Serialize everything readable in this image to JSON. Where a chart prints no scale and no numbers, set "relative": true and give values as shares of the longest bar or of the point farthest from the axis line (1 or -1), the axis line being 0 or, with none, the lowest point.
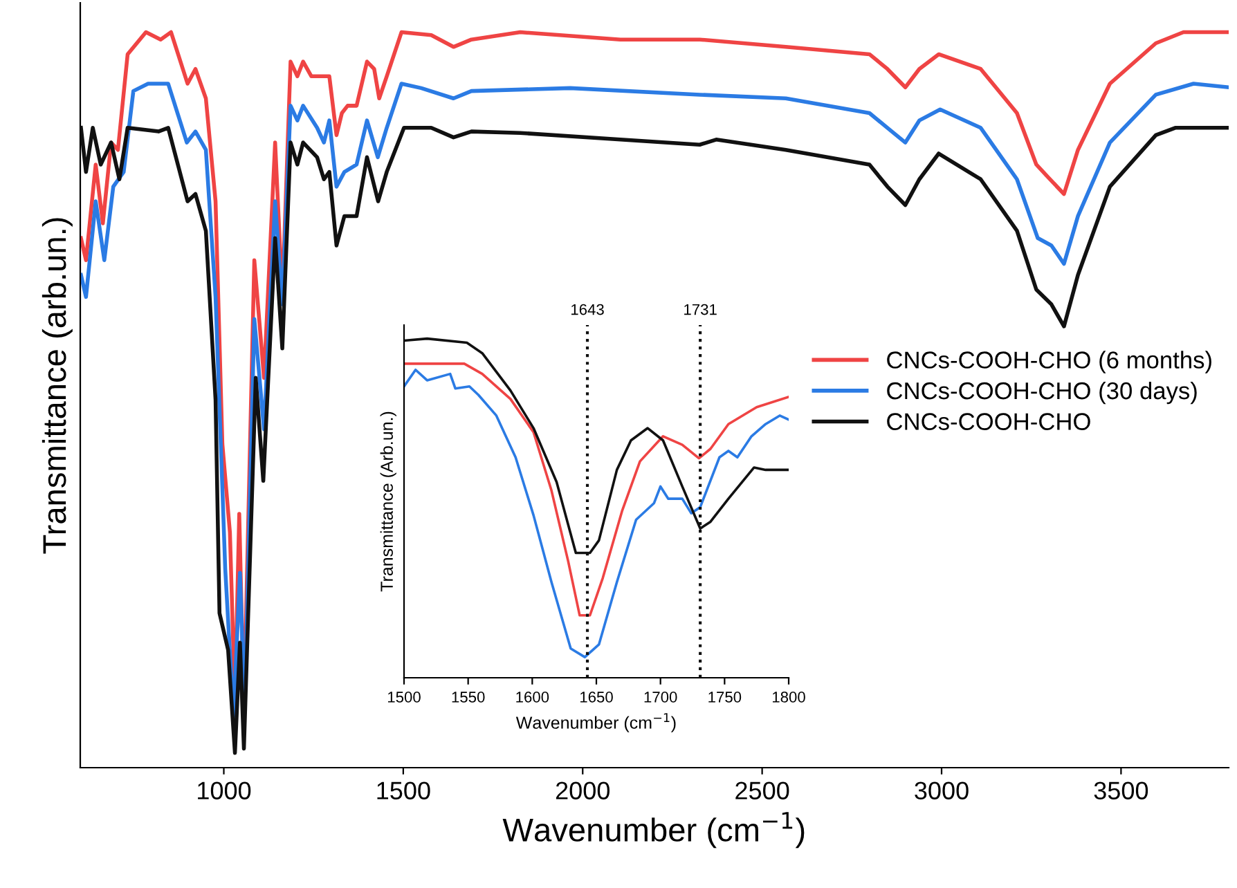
{
  "chart_data": [
    {
      "type": "line",
      "xlabel": "Wavenumber (cm$^{−1}$)",
      "ylabel": "Transmittance (arb.un.)",
      "relative": true,
      "xlim": [
        600,
        3800
      ],
      "xticks": [
        1000,
        1500,
        2000,
        2500,
        3000,
        3500
      ],
      "legend": "right",
      "grid": false,
      "marker": "none",
      "line_style": "solid",
      "series": [
        {
          "name": "CNCs-COOH-CHO (6 months)",
          "color": "#ef4444",
          "x": [
            602,
            616,
            643,
            663,
            686,
            705,
            732,
            783,
            824,
            853,
            899,
            921,
            950,
            977,
            996,
            1017,
            1031,
            1043,
            1056,
            1085,
            1112,
            1143,
            1163,
            1186,
            1205,
            1221,
            1244,
            1294,
            1314,
            1329,
            1345,
            1370,
            1399,
            1419,
            1433,
            1454,
            1495,
            1578,
            1640,
            1690,
            1826,
            2105,
            2326,
            2566,
            2799,
            2849,
            2899,
            2938,
            2992,
            3109,
            3210,
            3264,
            3302,
            3341,
            3380,
            3469,
            3597,
            3674,
            3800
          ],
          "values": [
            0.72,
            0.69,
            0.82,
            0.74,
            0.85,
            0.84,
            0.97,
            1.0,
            0.99,
            1.0,
            0.93,
            0.95,
            0.91,
            0.77,
            0.44,
            0.32,
            0.09,
            0.345,
            0.08,
            0.69,
            0.53,
            0.85,
            0.64,
            0.96,
            0.94,
            0.96,
            0.94,
            0.94,
            0.86,
            0.89,
            0.9,
            0.9,
            0.96,
            0.95,
            0.91,
            0.94,
            1.0,
            0.996,
            0.98,
            0.99,
            1.0,
            0.99,
            0.99,
            0.98,
            0.97,
            0.95,
            0.925,
            0.95,
            0.97,
            0.95,
            0.89,
            0.82,
            0.8,
            0.78,
            0.84,
            0.93,
            0.985,
            1.0,
            1.0
          ]
        },
        {
          "name": "CNCs-COOH-CHO (30 days)",
          "color": "#2b7be4",
          "x": [
            602,
            616,
            643,
            667,
            692,
            721,
            748,
            789,
            845,
            897,
            921,
            950,
            977,
            1004,
            1027,
            1045,
            1058,
            1085,
            1112,
            1143,
            1163,
            1186,
            1205,
            1221,
            1260,
            1279,
            1294,
            1314,
            1336,
            1370,
            1399,
            1429,
            1454,
            1495,
            1550,
            1640,
            1690,
            1965,
            2326,
            2566,
            2799,
            2849,
            2899,
            2938,
            2996,
            3109,
            3210,
            3268,
            3306,
            3341,
            3380,
            3469,
            3597,
            3702,
            3800
          ],
          "values": [
            0.67,
            0.64,
            0.77,
            0.69,
            0.79,
            0.81,
            0.92,
            0.93,
            0.93,
            0.85,
            0.865,
            0.84,
            0.64,
            0.27,
            0.07,
            0.265,
            0.077,
            0.61,
            0.46,
            0.77,
            0.63,
            0.9,
            0.88,
            0.9,
            0.87,
            0.85,
            0.88,
            0.79,
            0.81,
            0.82,
            0.88,
            0.83,
            0.87,
            0.93,
            0.924,
            0.91,
            0.92,
            0.924,
            0.915,
            0.91,
            0.89,
            0.87,
            0.85,
            0.88,
            0.895,
            0.87,
            0.8,
            0.72,
            0.71,
            0.685,
            0.75,
            0.85,
            0.915,
            0.93,
            0.925
          ]
        },
        {
          "name": "CNCs-COOH-CHO",
          "color": "#111111",
          "x": [
            602,
            616,
            635,
            657,
            686,
            709,
            732,
            818,
            845,
            899,
            921,
            950,
            977,
            988,
            1012,
            1031,
            1045,
            1056,
            1089,
            1110,
            1143,
            1163,
            1186,
            1205,
            1221,
            1260,
            1279,
            1294,
            1314,
            1336,
            1370,
            1399,
            1430,
            1454,
            1502,
            1578,
            1640,
            1690,
            1826,
            2105,
            2326,
            2372,
            2566,
            2799,
            2849,
            2899,
            2938,
            2992,
            3109,
            3210,
            3264,
            3306,
            3341,
            3380,
            3469,
            3597,
            3651,
            3800
          ],
          "values": [
            0.87,
            0.81,
            0.87,
            0.82,
            0.85,
            0.8,
            0.87,
            0.865,
            0.87,
            0.77,
            0.78,
            0.73,
            0.5,
            0.21,
            0.16,
            0.02,
            0.17,
            0.026,
            0.53,
            0.39,
            0.72,
            0.57,
            0.85,
            0.82,
            0.85,
            0.83,
            0.8,
            0.81,
            0.71,
            0.75,
            0.75,
            0.83,
            0.77,
            0.81,
            0.87,
            0.87,
            0.857,
            0.865,
            0.863,
            0.854,
            0.847,
            0.854,
            0.84,
            0.82,
            0.79,
            0.765,
            0.8,
            0.835,
            0.8,
            0.73,
            0.65,
            0.63,
            0.6,
            0.67,
            0.79,
            0.86,
            0.87,
            0.87
          ]
        }
      ]
    },
    {
      "type": "line",
      "xlabel": "Wavenumber (cm$^{−1}$)",
      "ylabel": "Transmittance (Arb.un.)",
      "relative": true,
      "xlim": [
        1500,
        1800
      ],
      "xticks": [
        1500,
        1550,
        1600,
        1650,
        1700,
        1750,
        1800
      ],
      "grid": false,
      "marker": "none",
      "line_style": "solid",
      "ref_lines": [
        {
          "axis": "x",
          "value": 1643,
          "label": "1643",
          "color": "#111111",
          "line_style": "dotted"
        },
        {
          "axis": "x",
          "value": 1731,
          "label": "1731",
          "color": "#111111",
          "line_style": "dotted"
        }
      ],
      "series": [
        {
          "color": "#ef4444",
          "x": [
            1500,
            1547,
            1561,
            1583,
            1601,
            1615,
            1628,
            1637,
            1645,
            1655,
            1670,
            1684,
            1702,
            1717,
            1730,
            1739,
            1753,
            1775,
            1800
          ],
          "values": [
            0.926,
            0.926,
            0.896,
            0.822,
            0.724,
            0.552,
            0.344,
            0.184,
            0.184,
            0.294,
            0.491,
            0.638,
            0.712,
            0.687,
            0.647,
            0.675,
            0.748,
            0.798,
            0.828
          ]
        },
        {
          "color": "#2b7be4",
          "x": [
            1500,
            1509,
            1518,
            1536,
            1540,
            1551,
            1558,
            1572,
            1587,
            1601,
            1615,
            1630,
            1641,
            1652,
            1666,
            1681,
            1695,
            1700,
            1706,
            1717,
            1724,
            1731,
            1746,
            1753,
            1760,
            1771,
            1782,
            1793,
            1800
          ],
          "values": [
            0.859,
            0.908,
            0.877,
            0.896,
            0.853,
            0.859,
            0.834,
            0.773,
            0.65,
            0.479,
            0.282,
            0.086,
            0.061,
            0.098,
            0.282,
            0.466,
            0.515,
            0.564,
            0.528,
            0.528,
            0.485,
            0.503,
            0.65,
            0.669,
            0.65,
            0.712,
            0.748,
            0.773,
            0.761
          ]
        },
        {
          "color": "#111111",
          "x": [
            1500,
            1518,
            1549,
            1561,
            1583,
            1601,
            1619,
            1634,
            1645,
            1652,
            1666,
            1677,
            1690,
            1702,
            1717,
            1731,
            1739,
            1753,
            1773,
            1782,
            1800
          ],
          "values": [
            0.994,
            1.0,
            0.988,
            0.957,
            0.847,
            0.736,
            0.577,
            0.368,
            0.368,
            0.405,
            0.613,
            0.7,
            0.736,
            0.7,
            0.564,
            0.44,
            0.46,
            0.528,
            0.62,
            0.613,
            0.613
          ]
        }
      ]
    }
  ]
}
